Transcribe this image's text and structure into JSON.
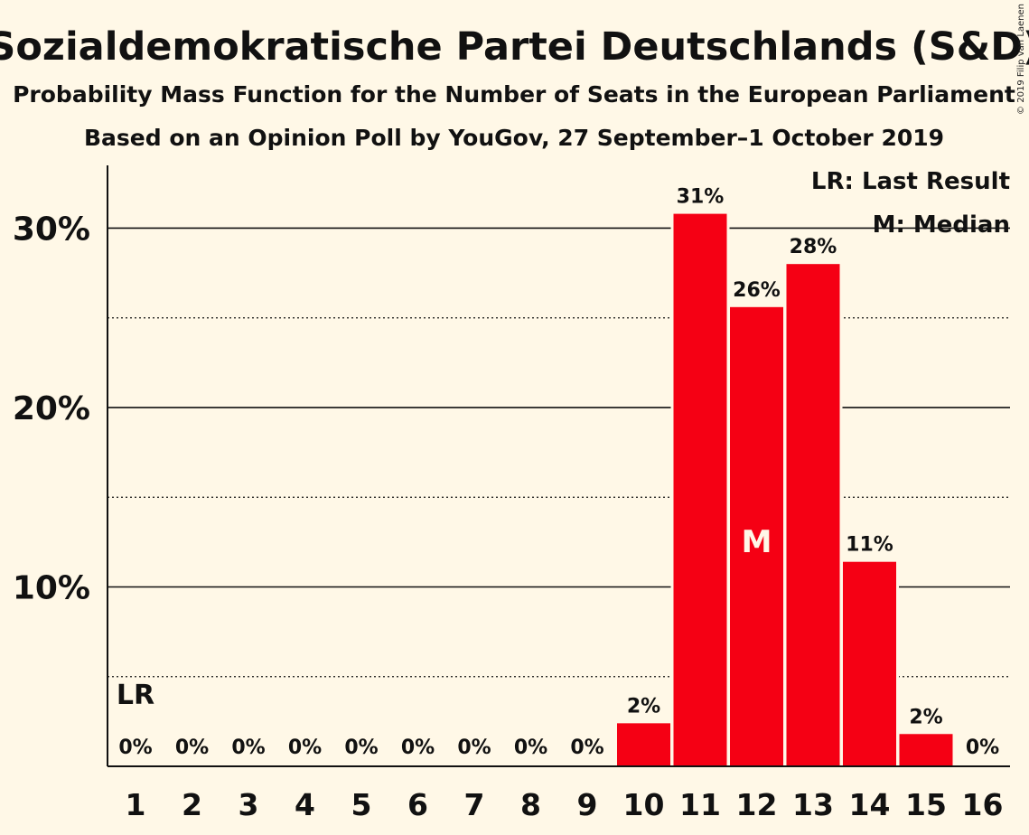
{
  "copyright": "© 2019 Filip van Laenen",
  "chart_data": {
    "type": "bar",
    "title": "Sozialdemokratische Partei Deutschlands (S&D)",
    "subtitle": "Probability Mass Function for the Number of Seats in the European Parliament",
    "subtitle2": "Based on an Opinion Poll by YouGov, 27 September–1 October 2019",
    "categories": [
      "1",
      "2",
      "3",
      "4",
      "5",
      "6",
      "7",
      "8",
      "9",
      "10",
      "11",
      "12",
      "13",
      "14",
      "15",
      "16"
    ],
    "values": [
      0,
      0,
      0,
      0,
      0,
      0,
      0,
      0,
      0,
      2.4,
      30.8,
      25.6,
      28.0,
      11.4,
      1.8,
      0
    ],
    "data_labels": [
      "0%",
      "0%",
      "0%",
      "0%",
      "0%",
      "0%",
      "0%",
      "0%",
      "0%",
      "2%",
      "31%",
      "26%",
      "28%",
      "11%",
      "2%",
      "0%"
    ],
    "ylim": [
      0,
      33.5
    ],
    "y_ticks": [
      10,
      20,
      30
    ],
    "y_tick_labels": [
      "10%",
      "20%",
      "30%"
    ],
    "y_minor_ticks": [
      5,
      15,
      25
    ],
    "bar_color": "#f50014",
    "background": "#fff8e7",
    "last_result_marker": {
      "category": "1",
      "label": "LR"
    },
    "median_marker": {
      "category": "12",
      "label": "M"
    },
    "legend": [
      "LR: Last Result",
      "M: Median"
    ],
    "legend_position": "top-right"
  }
}
